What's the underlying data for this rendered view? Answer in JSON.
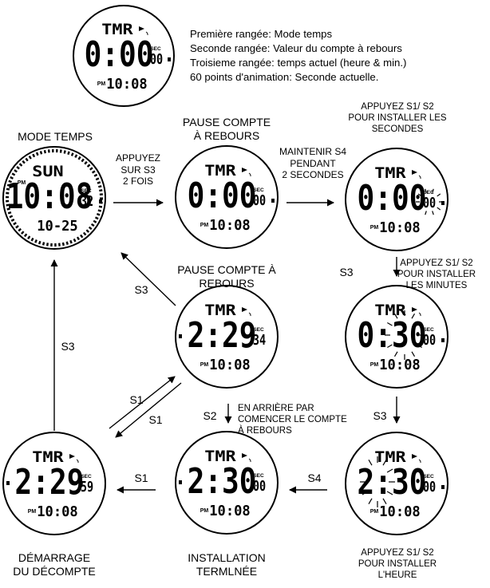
{
  "legend": [
    "Première rangée: Mode temps",
    "Seconde rangée: Valeur du compte à rebours",
    "Troisieme rangée: temps actuel (heure & min.)",
    "60 points d'animation: Seconde actuelle."
  ],
  "watches": [
    {
      "id": "legend",
      "top": "TMR",
      "main": "0:00",
      "sec_label": "SEC",
      "sec": "00",
      "pm": "PM",
      "bottom": "10:08"
    },
    {
      "id": "time-mode",
      "top": "SUN",
      "main": "10:08",
      "sec_label": "SEC",
      "sec": "32",
      "pm": "PM",
      "bottom": "10-25"
    },
    {
      "id": "pause",
      "top": "TMR",
      "main": "0:00",
      "sec_label": "SEC",
      "sec": "00",
      "pm": "PM",
      "bottom": "10:08"
    },
    {
      "id": "set-seconds",
      "top": "TMR",
      "main": "0:00",
      "sec_label": "SEC",
      "sec": "00",
      "pm": "PM",
      "bottom": "10:08"
    },
    {
      "id": "pause-running",
      "top": "TMR",
      "main": "2:29",
      "sec_label": "SEC",
      "sec": "34",
      "pm": "PM",
      "bottom": "10:08"
    },
    {
      "id": "set-minutes",
      "top": "TMR",
      "main": "0:30",
      "sec_label": "SEC",
      "sec": "00",
      "pm": "PM",
      "bottom": "10:08"
    },
    {
      "id": "countdown-start",
      "top": "TMR",
      "main": "2:29",
      "sec_label": "SEC",
      "sec": "59",
      "pm": "PM",
      "bottom": "10:08"
    },
    {
      "id": "setting-done",
      "top": "TMR",
      "main": "2:30",
      "sec_label": "SEC",
      "sec": "00",
      "pm": "PM",
      "bottom": "10:08"
    },
    {
      "id": "set-hours",
      "top": "TMR",
      "main": "2:30",
      "sec_label": "SEC",
      "sec": "00",
      "pm": "PM",
      "bottom": "10:08"
    }
  ],
  "labels": {
    "mode_temps": "MODE TEMPS",
    "pause_compte": [
      "PAUSE COMPTE",
      "À REBOURS"
    ],
    "appuyez_s1s2_sec": [
      "APPUYEZ S1/ S2",
      "POUR INSTALLER LES",
      "SECONDES"
    ],
    "appuyez_s3": [
      "APPUYEZ",
      "SUR S3",
      "2 FOIS"
    ],
    "maintenir_s4": [
      "MAINTENIR S4",
      "PENDANT",
      "2 SECONDES"
    ],
    "pause_compte_2": [
      "PAUSE COMPTE À",
      "REBOURS"
    ],
    "appuyez_s1s2_min": [
      "APPUYEZ S1/ S2",
      "POUR INSTALLER",
      "LES MINUTES"
    ],
    "en_arriere": [
      "EN ARRIÈRE PAR",
      "COMENCER LE COMPTE",
      "À REBOURS"
    ],
    "demarrage": [
      "DÉMARRAGE",
      "DU DÉCOMPTE"
    ],
    "installation": [
      "INSTALLATION",
      "TERMLNÉE"
    ],
    "appuyez_s1s2_heure": [
      "APPUYEZ S1/ S2",
      "POUR INSTALLER",
      "L'HEURE"
    ],
    "s3": "S3",
    "s1": "S1",
    "s2": "S2",
    "s4": "S4"
  }
}
